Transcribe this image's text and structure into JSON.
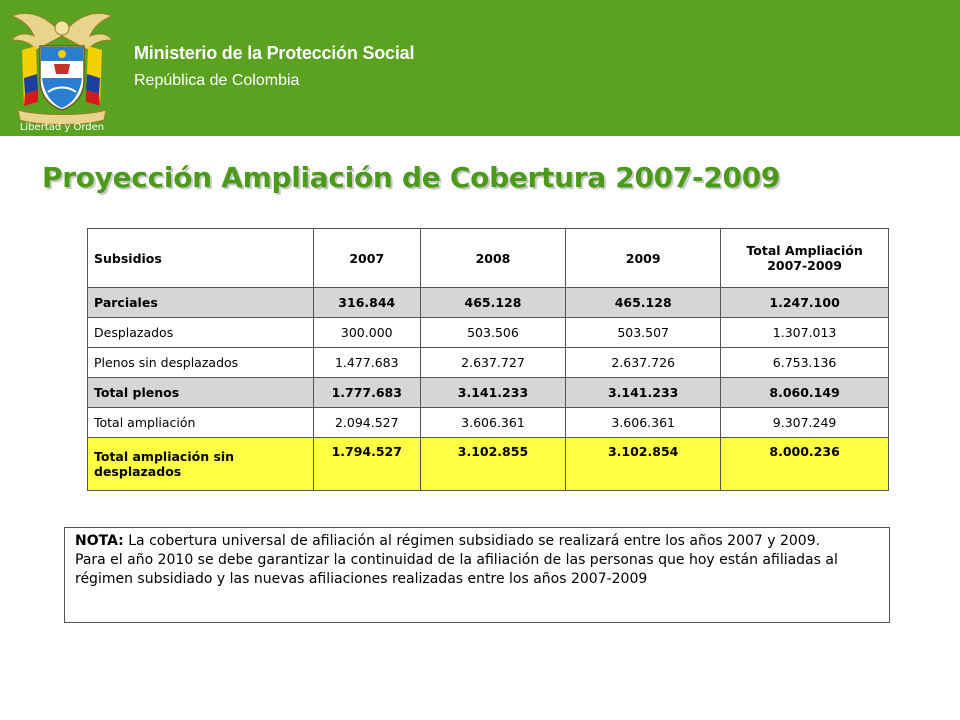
{
  "header": {
    "ministry": "Ministerio de la Protección Social",
    "country": "República de Colombia",
    "emblem_motto": "Libertad y Orden",
    "background_color": "#5aa220"
  },
  "title": "Proyección Ampliación de Cobertura 2007-2009",
  "table": {
    "headers": [
      "Subsidios",
      "2007",
      "2008",
      "2009",
      "Total Ampliación 2007-2009"
    ],
    "rows": [
      {
        "label": "Parciales",
        "values": [
          "316.844",
          "465.128",
          "465.128",
          "1.247.100"
        ]
      },
      {
        "label": "Desplazados",
        "values": [
          "300.000",
          "503.506",
          "503.507",
          "1.307.013"
        ]
      },
      {
        "label": "Plenos sin desplazados",
        "values": [
          "1.477.683",
          "2.637.727",
          "2.637.726",
          "6.753.136"
        ]
      },
      {
        "label": "Total plenos",
        "values": [
          "1.777.683",
          "3.141.233",
          "3.141.233",
          "8.060.149"
        ]
      },
      {
        "label": "Total ampliación",
        "values": [
          "2.094.527",
          "3.606.361",
          "3.606.361",
          "9.307.249"
        ]
      },
      {
        "label": "Total ampliación sin desplazados",
        "values": [
          "1.794.527",
          "3.102.855",
          "3.102.854",
          "8.000.236"
        ]
      }
    ]
  },
  "note": {
    "label": "NOTA:",
    "line1": "La cobertura universal de afiliación al régimen subsidiado se realizará entre los años 2007 y 2009.",
    "line2": "Para el año 2010 se debe garantizar la continuidad de la afiliación de las personas que hoy están afiliadas al régimen subsidiado y las nuevas afiliaciones realizadas entre los años 2007-2009"
  }
}
